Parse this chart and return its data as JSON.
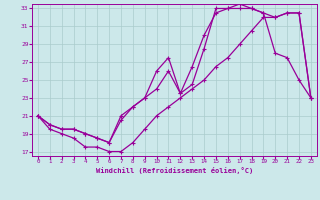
{
  "xlabel": "Windchill (Refroidissement éolien,°C)",
  "bg_color": "#cce8ea",
  "line_color": "#990099",
  "grid_color": "#aacccc",
  "xlim": [
    -0.5,
    23.5
  ],
  "ylim": [
    16.5,
    33.5
  ],
  "yticks": [
    17,
    19,
    21,
    23,
    25,
    27,
    29,
    31,
    33
  ],
  "xticks": [
    0,
    1,
    2,
    3,
    4,
    5,
    6,
    7,
    8,
    9,
    10,
    11,
    12,
    13,
    14,
    15,
    16,
    17,
    18,
    19,
    20,
    21,
    22,
    23
  ],
  "line1_x": [
    0,
    1,
    2,
    3,
    4,
    5,
    6,
    7,
    8,
    9,
    10,
    11,
    12,
    13,
    14,
    15,
    16,
    17,
    18,
    19,
    20,
    21,
    22,
    23
  ],
  "line1_y": [
    21.0,
    19.5,
    19.0,
    18.5,
    17.5,
    17.5,
    17.0,
    17.0,
    18.0,
    19.5,
    21.0,
    22.0,
    23.0,
    24.0,
    25.0,
    26.5,
    27.5,
    29.0,
    30.5,
    32.0,
    32.0,
    32.5,
    32.5,
    23.0
  ],
  "line2_x": [
    0,
    1,
    2,
    3,
    4,
    5,
    6,
    7,
    8,
    9,
    10,
    11,
    12,
    13,
    14,
    15,
    16,
    17,
    18,
    19,
    20,
    21,
    22,
    23
  ],
  "line2_y": [
    21.0,
    20.0,
    19.5,
    19.5,
    19.0,
    18.5,
    18.0,
    20.5,
    22.0,
    23.0,
    24.0,
    26.0,
    23.5,
    24.5,
    28.5,
    33.0,
    33.0,
    33.0,
    33.0,
    32.5,
    28.0,
    27.5,
    25.0,
    23.0
  ],
  "line3_x": [
    0,
    1,
    2,
    3,
    4,
    5,
    6,
    7,
    8,
    9,
    10,
    11,
    12,
    13,
    14,
    15,
    16,
    17,
    18,
    19,
    20,
    21,
    22,
    23
  ],
  "line3_y": [
    21.0,
    20.0,
    19.5,
    19.5,
    19.0,
    18.5,
    18.0,
    21.0,
    22.0,
    23.0,
    26.0,
    27.5,
    23.5,
    26.5,
    30.0,
    32.5,
    33.0,
    33.5,
    33.0,
    32.5,
    32.0,
    32.5,
    32.5,
    23.0
  ]
}
